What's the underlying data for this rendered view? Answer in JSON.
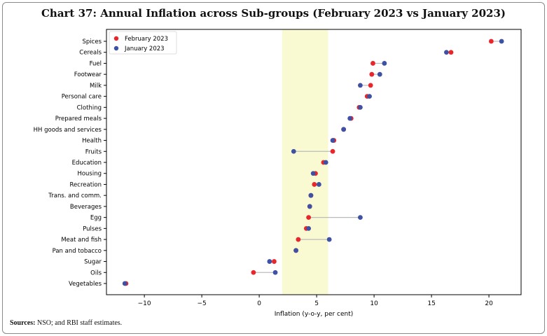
{
  "chart_data": {
    "type": "dot-plot",
    "title": "Chart 37: Annual Inflation across Sub-groups (February 2023 vs January 2023)",
    "xlabel": "Inflation (y-o-y, per cent)",
    "ylabel": "",
    "xlim": [
      -13.3,
      22.8
    ],
    "xticks": [
      -10,
      -5,
      0,
      5,
      10,
      15,
      20
    ],
    "xtick_labels": [
      "−10",
      "−5",
      "0",
      "5",
      "10",
      "15",
      "20"
    ],
    "shaded_band": [
      2,
      6
    ],
    "shaded_band_color": "#fafad2",
    "legend_position": "top-left",
    "grid": false,
    "categories": [
      "Spices",
      "Cereals",
      "Fuel",
      "Footwear",
      "Milk",
      "Personal care",
      "Clothing",
      "Prepared meals",
      "HH goods and services",
      "Health",
      "Fruits",
      "Education",
      "Housing",
      "Recreation",
      "Trans. and comm.",
      "Beverages",
      "Egg",
      "Pulses",
      "Meat and fish",
      "Pan and tobacco",
      "Sugar",
      "Oils",
      "Vegetables"
    ],
    "series": [
      {
        "name": "February 2023",
        "color": "#e8262b",
        "values": [
          20.2,
          16.7,
          9.9,
          9.8,
          9.7,
          9.4,
          8.7,
          8.0,
          7.35,
          6.5,
          6.4,
          5.6,
          4.9,
          4.8,
          4.5,
          4.4,
          4.3,
          4.1,
          3.4,
          3.2,
          1.3,
          -0.5,
          -11.6
        ]
      },
      {
        "name": "January 2023",
        "color": "#3f51a3",
        "values": [
          21.1,
          16.3,
          10.9,
          10.5,
          8.8,
          9.6,
          8.8,
          7.9,
          7.35,
          6.4,
          3.0,
          5.8,
          4.7,
          5.2,
          4.5,
          4.4,
          8.8,
          4.3,
          6.1,
          3.2,
          0.9,
          1.4,
          -11.7
        ]
      }
    ]
  },
  "source": {
    "label": "Sources:",
    "text": " NSO; and RBI staff estimates."
  }
}
